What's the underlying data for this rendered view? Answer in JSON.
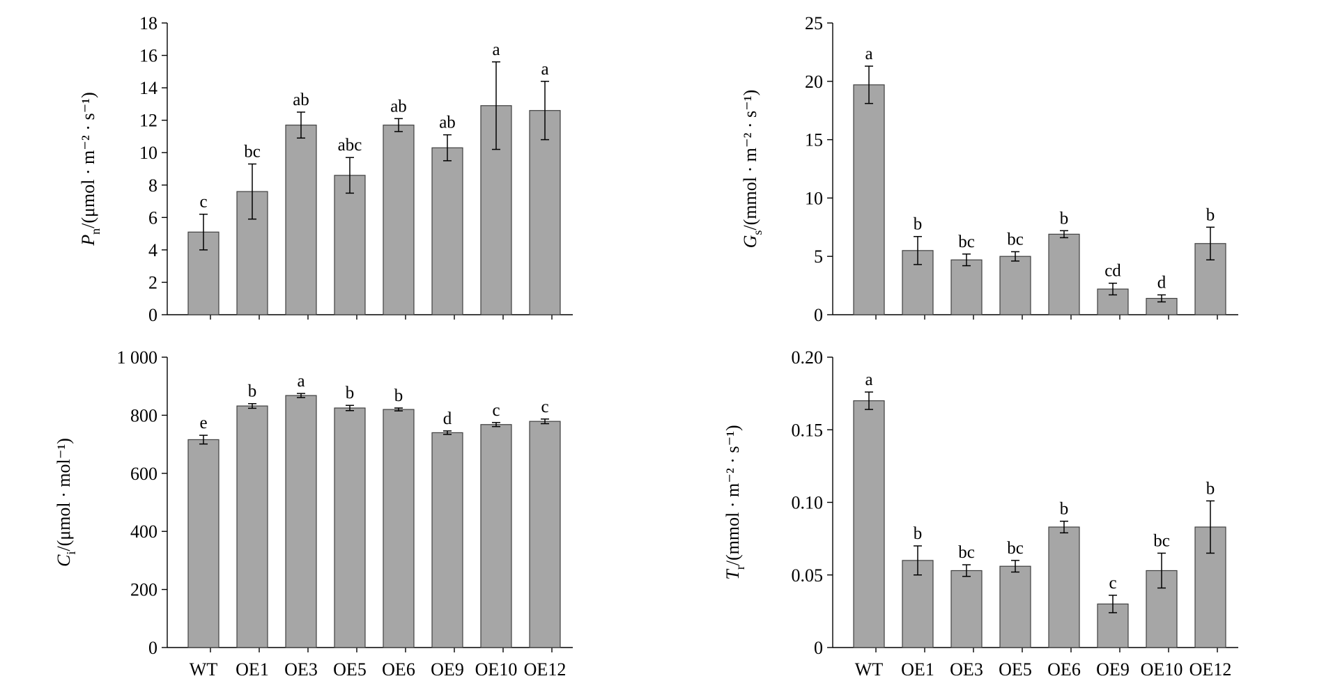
{
  "chart_data": [
    {
      "type": "bar",
      "categories": [
        "WT",
        "OE1",
        "OE3",
        "OE5",
        "OE6",
        "OE9",
        "OE10",
        "OE12"
      ],
      "values": [
        5.1,
        7.6,
        11.7,
        8.6,
        11.7,
        10.3,
        12.9,
        12.6
      ],
      "errors": [
        1.1,
        1.7,
        0.8,
        1.1,
        0.4,
        0.8,
        2.7,
        1.8
      ],
      "significance": [
        "c",
        "bc",
        "ab",
        "abc",
        "ab",
        "ab",
        "a",
        "a"
      ],
      "ylim": [
        0,
        18
      ],
      "yticks": [
        0,
        2,
        4,
        6,
        8,
        10,
        12,
        14,
        16,
        18
      ],
      "ytick_labels": [
        "0",
        "2",
        "4",
        "6",
        "8",
        "10",
        "12",
        "14",
        "16",
        "18"
      ],
      "ylabel_symbol": "P",
      "ylabel_sub": "n",
      "ylabel_text": "/(μmol · m⁻² · s⁻¹)",
      "show_category_labels": false
    },
    {
      "type": "bar",
      "categories": [
        "WT",
        "OE1",
        "OE3",
        "OE5",
        "OE6",
        "OE9",
        "OE10",
        "OE12"
      ],
      "values": [
        19.7,
        5.5,
        4.7,
        5.0,
        6.9,
        2.2,
        1.4,
        6.1
      ],
      "errors": [
        1.6,
        1.2,
        0.5,
        0.4,
        0.3,
        0.5,
        0.3,
        1.4
      ],
      "significance": [
        "a",
        "b",
        "bc",
        "bc",
        "b",
        "cd",
        "d",
        "b"
      ],
      "ylim": [
        0,
        25
      ],
      "yticks": [
        0,
        5,
        10,
        15,
        20,
        25
      ],
      "ytick_labels": [
        "0",
        "5",
        "10",
        "15",
        "20",
        "25"
      ],
      "ylabel_symbol": "G",
      "ylabel_sub": "s",
      "ylabel_text": "/(mmol · m⁻² · s⁻¹)",
      "show_category_labels": false
    },
    {
      "type": "bar",
      "categories": [
        "WT",
        "OE1",
        "OE3",
        "OE5",
        "OE6",
        "OE9",
        "OE10",
        "OE12"
      ],
      "values": [
        716,
        832,
        868,
        825,
        820,
        740,
        768,
        779
      ],
      "errors": [
        15,
        8,
        7,
        9,
        5,
        6,
        7,
        8
      ],
      "significance": [
        "e",
        "b",
        "a",
        "b",
        "b",
        "d",
        "c",
        "c"
      ],
      "ylim": [
        0,
        1000
      ],
      "yticks": [
        0,
        200,
        400,
        600,
        800,
        1000
      ],
      "ytick_labels": [
        "0",
        "200",
        "400",
        "600",
        "800",
        "1 000"
      ],
      "ylabel_symbol": "C",
      "ylabel_sub": "i",
      "ylabel_text": "/(μmol · mol⁻¹)",
      "show_category_labels": true
    },
    {
      "type": "bar",
      "categories": [
        "WT",
        "OE1",
        "OE3",
        "OE5",
        "OE6",
        "OE9",
        "OE10",
        "OE12"
      ],
      "values": [
        0.17,
        0.06,
        0.053,
        0.056,
        0.083,
        0.03,
        0.053,
        0.083
      ],
      "errors": [
        0.006,
        0.01,
        0.004,
        0.004,
        0.004,
        0.006,
        0.012,
        0.018
      ],
      "significance": [
        "a",
        "b",
        "bc",
        "bc",
        "b",
        "c",
        "bc",
        "b"
      ],
      "ylim": [
        0,
        0.2
      ],
      "yticks": [
        0,
        0.05,
        0.1,
        0.15,
        0.2
      ],
      "ytick_labels": [
        "0",
        "0.05",
        "0.10",
        "0.15",
        "0.20"
      ],
      "ylabel_symbol": "T",
      "ylabel_sub": "r",
      "ylabel_text": "/(mmol · m⁻² · s⁻¹)",
      "show_category_labels": true
    }
  ]
}
